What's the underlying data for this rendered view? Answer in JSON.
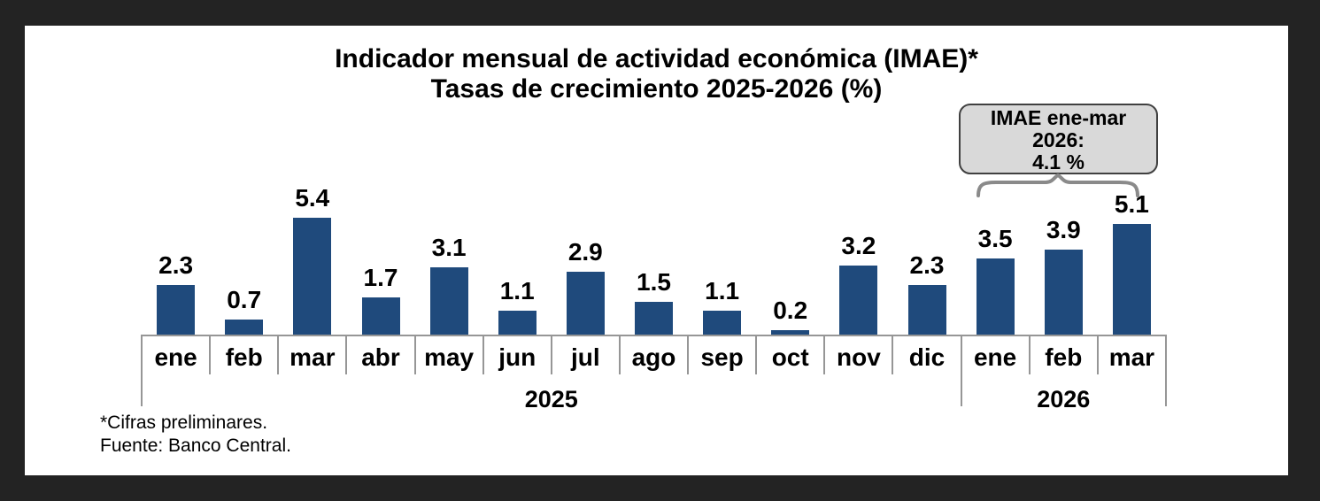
{
  "title": {
    "line1": "Indicador mensual de actividad económica (IMAE)*",
    "line2": "Tasas de crecimiento 2025-2026 (%)"
  },
  "chart_data": {
    "type": "bar",
    "title": "Indicador mensual de actividad económica (IMAE)* — Tasas de crecimiento 2025-2026 (%)",
    "categories": [
      "ene",
      "feb",
      "mar",
      "abr",
      "may",
      "jun",
      "jul",
      "ago",
      "sep",
      "oct",
      "nov",
      "dic",
      "ene",
      "feb",
      "mar"
    ],
    "values": [
      2.3,
      0.7,
      5.4,
      1.7,
      3.1,
      1.1,
      2.9,
      1.5,
      1.1,
      0.2,
      3.2,
      2.3,
      3.5,
      3.9,
      5.1
    ],
    "year_groups": [
      {
        "label": "2025",
        "start": 0,
        "end": 11
      },
      {
        "label": "2026",
        "start": 12,
        "end": 14
      }
    ],
    "xlabel": "",
    "ylabel": "",
    "ylim": [
      0,
      5.7
    ],
    "grid": false,
    "legend": "none",
    "data_labels": true,
    "bar_color": "#1f4a7c",
    "axis_color": "#969696"
  },
  "annotation": {
    "line1": "IMAE ene-mar",
    "line2": "2026:",
    "line3": "4.1 %",
    "box_bg": "#d9d9d9",
    "brace_color": "#8a8a8a"
  },
  "footnotes": [
    "*Cifras preliminares.",
    "Fuente: Banco Central."
  ]
}
